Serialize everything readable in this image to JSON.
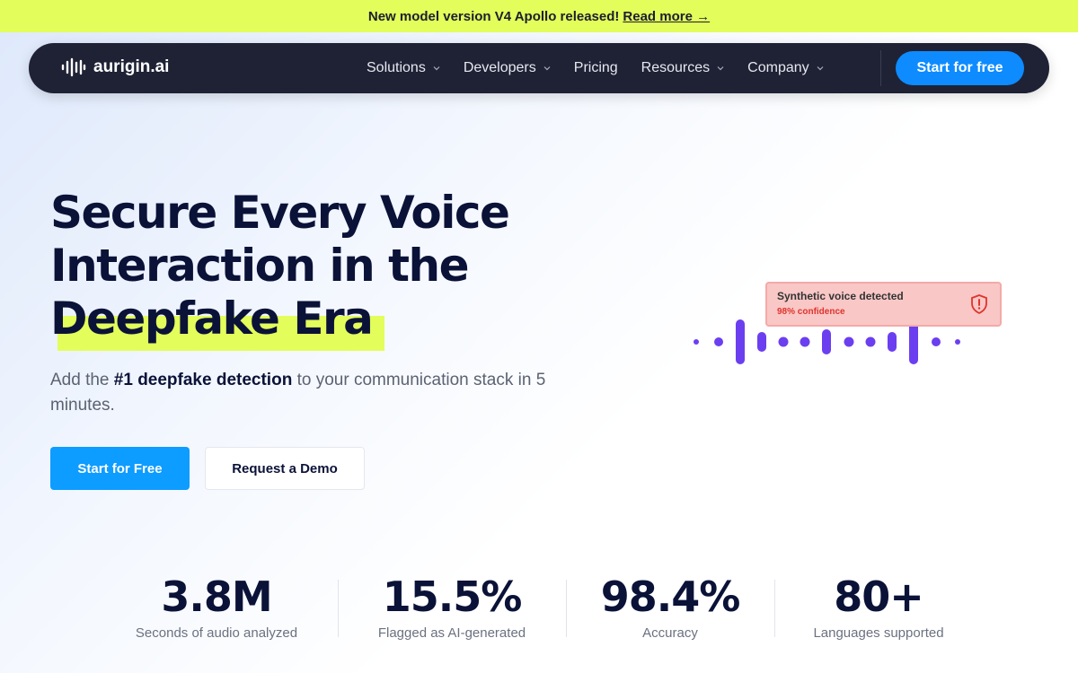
{
  "banner": {
    "text": "New model version V4 Apollo released!",
    "link": "Read more →"
  },
  "nav": {
    "logo": "aurigin.ai",
    "items": [
      "Solutions",
      "Developers",
      "Pricing",
      "Resources",
      "Company"
    ],
    "cta": "Start for free"
  },
  "hero": {
    "title_lines": [
      "Secure Every Voice",
      "Interaction in the"
    ],
    "title_highlight": "Deepfake Era",
    "subtitle": {
      "before": "Add the ",
      "strong": "#1 deepfake detection",
      "after": " to your communication stack in 5 minutes."
    },
    "primary_button": "Start for Free",
    "secondary_button": "Request a Demo"
  },
  "detection_card": {
    "title": "Synthetic voice detected",
    "confidence": "98% confidence"
  },
  "stats": [
    {
      "value": "3.8M",
      "label": "Seconds of audio analyzed"
    },
    {
      "value": "15.5%",
      "label": "Flagged as AI-generated"
    },
    {
      "value": "98.4%",
      "label": "Accuracy"
    },
    {
      "value": "80+",
      "label": "Languages supported"
    }
  ]
}
